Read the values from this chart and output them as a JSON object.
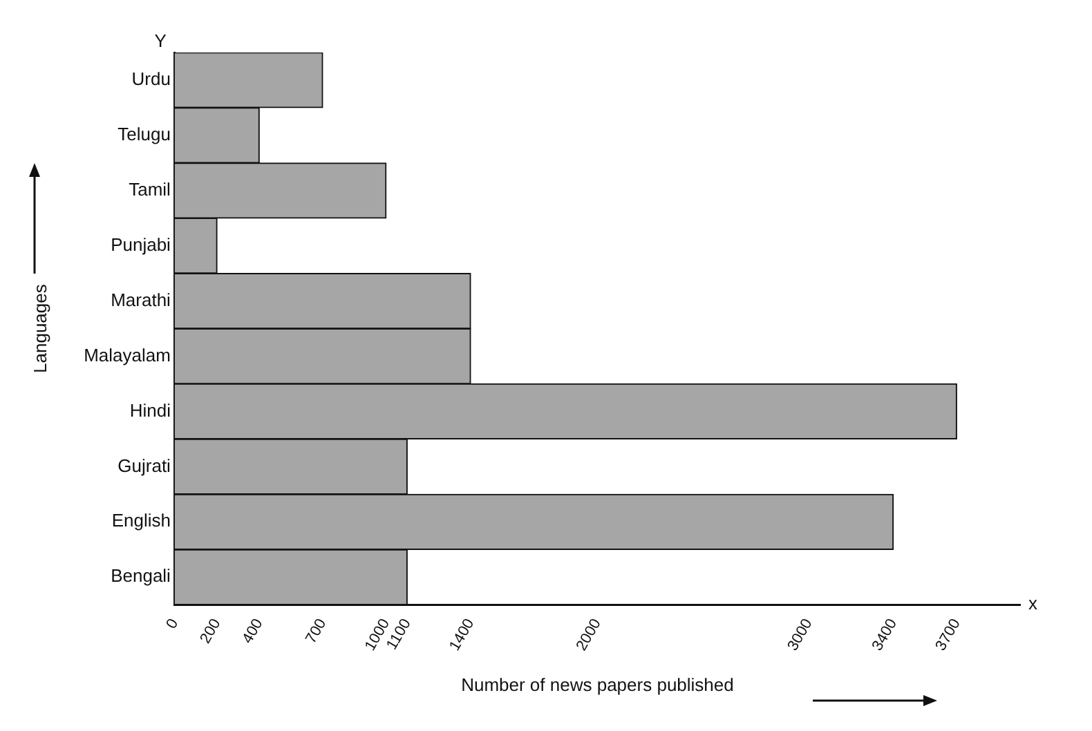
{
  "chart_data": {
    "type": "bar",
    "orientation": "horizontal",
    "categories": [
      "Urdu",
      "Telugu",
      "Tamil",
      "Punjabi",
      "Marathi",
      "Malayalam",
      "Hindi",
      "Gujrati",
      "English",
      "Bengali"
    ],
    "values": [
      700,
      400,
      1000,
      200,
      1400,
      1400,
      3700,
      1100,
      3400,
      1100
    ],
    "color": "#a6a6a6",
    "xlabel": "Number of news papers published",
    "ylabel": "Languages",
    "xlim": [
      0,
      4000
    ],
    "xticks": [
      0,
      200,
      400,
      700,
      1000,
      1100,
      1400,
      2000,
      3000,
      3400,
      3700
    ],
    "annotations": [
      "Y",
      "x"
    ],
    "grid": false,
    "legend": false
  }
}
